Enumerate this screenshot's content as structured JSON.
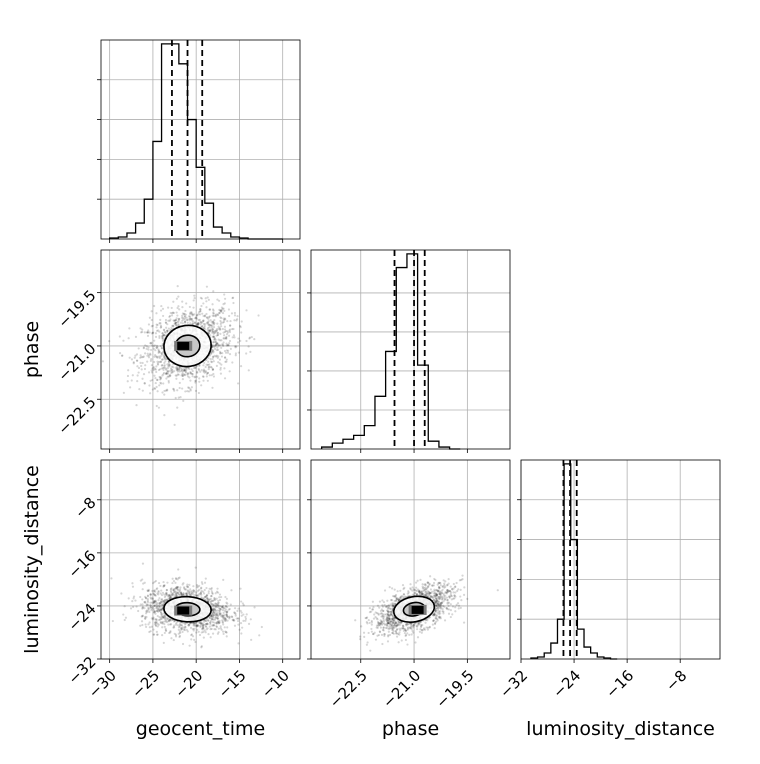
{
  "chart_data": {
    "type": "scatter",
    "title": "",
    "parameters": [
      "geocent_time",
      "phase",
      "luminosity_distance"
    ],
    "grid": true,
    "quantiles_shown": "dashed vertical lines at median and ±1σ",
    "ranges": {
      "geocent_time": [
        -31,
        -8
      ],
      "phase": [
        -23.9,
        -18.3
      ],
      "luminosity_distance": [
        -32,
        -2
      ]
    },
    "ticks": {
      "geocent_time": {
        "values": [
          -30,
          -25,
          -20,
          -15,
          -10
        ],
        "labels": [
          "−30",
          "−25",
          "−20",
          "−15",
          "−10"
        ]
      },
      "phase": {
        "values": [
          -22.5,
          -21.0,
          -19.5
        ],
        "labels": [
          "−22.5",
          "−21.0",
          "−19.5"
        ]
      },
      "luminosity_distance": {
        "values": [
          -32,
          -24,
          -16,
          -8
        ],
        "labels": [
          "−32",
          "−24",
          "−16",
          "−8"
        ]
      }
    },
    "marginals": {
      "geocent_time": {
        "bin_edges": [
          -30,
          -29,
          -28,
          -27,
          -26,
          -25,
          -24,
          -23,
          -22,
          -21,
          -20,
          -19,
          -18,
          -17,
          -16,
          -15,
          -14,
          -13,
          -12,
          -11,
          -10
        ],
        "counts": [
          0.005,
          0.01,
          0.03,
          0.08,
          0.2,
          0.49,
          0.98,
          0.98,
          0.88,
          0.6,
          0.36,
          0.18,
          0.06,
          0.03,
          0.01,
          0.005,
          0.0,
          0.0,
          0.0,
          0.0
        ],
        "quantiles": [
          -22.8,
          -21.0,
          -19.3
        ]
      },
      "phase": {
        "bin_edges": [
          -23.6,
          -23.3,
          -23.0,
          -22.7,
          -22.4,
          -22.1,
          -21.8,
          -21.5,
          -21.2,
          -20.9,
          -20.6,
          -20.3,
          -20.0,
          -19.7
        ],
        "counts": [
          0.01,
          0.03,
          0.05,
          0.07,
          0.12,
          0.27,
          0.5,
          0.93,
          1.0,
          0.43,
          0.04,
          0.01,
          0.0
        ],
        "quantiles": [
          -21.55,
          -21.0,
          -20.7
        ]
      },
      "luminosity_distance": {
        "bin_edges": [
          -30.5,
          -29.5,
          -28.5,
          -27.5,
          -26.5,
          -25.5,
          -24.5,
          -23.5,
          -22.5,
          -21.5,
          -20.5,
          -19.5,
          -18.5,
          -17.5
        ],
        "counts": [
          0.005,
          0.01,
          0.03,
          0.08,
          0.2,
          0.98,
          0.6,
          0.15,
          0.06,
          0.03,
          0.01,
          0.005,
          0.0
        ],
        "quantiles": [
          -25.6,
          -24.6,
          -23.6
        ]
      }
    },
    "joint": {
      "phase_vs_geocent_time": {
        "mean": [
          -21.0,
          -21.0
        ],
        "sd": [
          2.6,
          0.55
        ],
        "rho": 0.25,
        "peak": [
          -21.5,
          -21.0
        ]
      },
      "luminosity_distance_vs_geocent_time": {
        "mean": [
          -21.0,
          -24.5
        ],
        "sd": [
          2.6,
          1.8
        ],
        "rho": -0.15,
        "peak": [
          -21.5,
          -24.7
        ]
      },
      "luminosity_distance_vs_phase": {
        "mean": [
          -21.0,
          -24.5
        ],
        "sd": [
          0.55,
          1.8
        ],
        "rho": 0.55,
        "peak": [
          -20.9,
          -24.6
        ]
      }
    },
    "contour_levels_sigma": [
      1,
      2
    ]
  }
}
